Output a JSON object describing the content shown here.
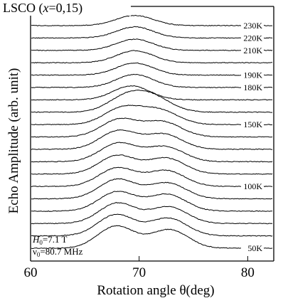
{
  "chart_data": {
    "type": "line",
    "title": "LSCO (x=0,15)",
    "title_parts": {
      "prefix": "LSCO (",
      "var": "x",
      "suffix": "=0,15)"
    },
    "xlabel": "Rotation angle θ(deg)",
    "ylabel": "Echo Amplitude (arb. unit)",
    "xlim": [
      60,
      82.4
    ],
    "x_ticks": [
      "60",
      "70",
      "80"
    ],
    "grid": false,
    "stacked_offset": true,
    "conditions": {
      "field": {
        "symbol": "H",
        "sub": "0",
        "value": "=7.1 T"
      },
      "frequency": {
        "symbol": "ν",
        "sub": "0",
        "value": "=80.7 MHz"
      }
    },
    "temperature_labels": [
      "230K",
      "220K",
      "210K",
      "190K",
      "180K",
      "150K",
      "100K",
      "50K"
    ],
    "series": [
      {
        "label": "230K",
        "peak_positions": [
          69.6
        ],
        "peak_heights": [
          0.55
        ]
      },
      {
        "label": "220K",
        "peak_positions": [
          69.6
        ],
        "peak_heights": [
          0.6
        ]
      },
      {
        "label": "210K",
        "peak_positions": [
          69.6
        ],
        "peak_heights": [
          0.6
        ]
      },
      {
        "label": "",
        "peak_positions": [
          69.6
        ],
        "peak_heights": [
          0.65
        ]
      },
      {
        "label": "190K",
        "peak_positions": [
          69.6
        ],
        "peak_heights": [
          0.65
        ]
      },
      {
        "label": "180K",
        "peak_positions": [
          69.6
        ],
        "peak_heights": [
          0.7
        ]
      },
      {
        "label": "",
        "peak_positions": [
          69.3
        ],
        "peak_heights": [
          0.75
        ]
      },
      {
        "label": "",
        "peak_positions": [
          68.9,
          71.4
        ],
        "peak_heights": [
          0.85,
          0.7
        ]
      },
      {
        "label": "150K",
        "peak_positions": [
          68.5,
          71.9
        ],
        "peak_heights": [
          0.9,
          0.75
        ]
      },
      {
        "label": "",
        "peak_positions": [
          68.2,
          72.2
        ],
        "peak_heights": [
          0.95,
          0.8
        ]
      },
      {
        "label": "",
        "peak_positions": [
          68.1,
          72.3
        ],
        "peak_heights": [
          1.0,
          0.8
        ]
      },
      {
        "label": "",
        "peak_positions": [
          68.1,
          72.4
        ],
        "peak_heights": [
          1.0,
          0.8
        ]
      },
      {
        "label": "",
        "peak_positions": [
          68.0,
          72.5
        ],
        "peak_heights": [
          1.0,
          0.85
        ]
      },
      {
        "label": "100K",
        "peak_positions": [
          68.0,
          72.5
        ],
        "peak_heights": [
          1.0,
          0.85
        ]
      },
      {
        "label": "",
        "peak_positions": [
          68.0,
          72.6
        ],
        "peak_heights": [
          1.05,
          0.85
        ]
      },
      {
        "label": "",
        "peak_positions": [
          68.0,
          72.6
        ],
        "peak_heights": [
          1.05,
          0.9
        ]
      },
      {
        "label": "",
        "peak_positions": [
          68.0,
          72.7
        ],
        "peak_heights": [
          1.1,
          0.9
        ]
      },
      {
        "label": "",
        "peak_positions": [
          67.9,
          72.7
        ],
        "peak_heights": [
          1.15,
          0.95
        ]
      },
      {
        "label": "50K",
        "peak_positions": [
          67.9,
          72.8
        ],
        "peak_heights": [
          1.2,
          1.0
        ]
      }
    ]
  }
}
